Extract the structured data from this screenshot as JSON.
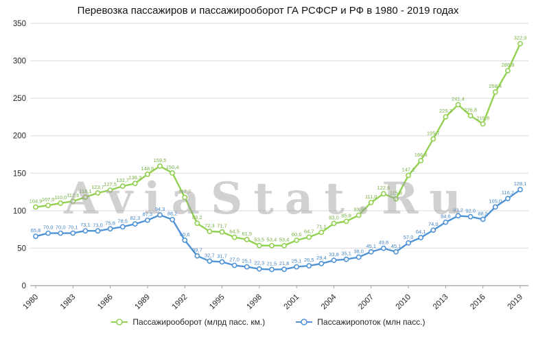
{
  "title": "Перевозка пассажиров и пассажирооборот ГА РСФСР и РФ в 1980 -  2019 годах",
  "watermark": "AviaStat.Ru",
  "chart_data": {
    "type": "line",
    "title": "Перевозка пассажиров и пассажирооборот ГА РСФСР и РФ в 1980 -  2019 годах",
    "years": [
      1980,
      1981,
      1982,
      1983,
      1984,
      1985,
      1986,
      1987,
      1988,
      1989,
      1990,
      1991,
      1992,
      1993,
      1994,
      1995,
      1996,
      1997,
      1998,
      1999,
      2000,
      2001,
      2002,
      2003,
      2004,
      2005,
      2006,
      2007,
      2008,
      2009,
      2010,
      2011,
      2012,
      2013,
      2014,
      2015,
      2016,
      2017,
      2018,
      2019
    ],
    "x_tick_labels": [
      "1980",
      "1983",
      "1986",
      "1989",
      "1992",
      "1995",
      "1998",
      "2001",
      "2004",
      "2007",
      "2010",
      "2013",
      "2016",
      "2019"
    ],
    "ylim": [
      0,
      350
    ],
    "y_ticks": [
      0,
      50,
      100,
      150,
      200,
      250,
      300,
      350
    ],
    "grid": "horizontal",
    "legend_position": "bottom",
    "decimal_separator": ",",
    "series": [
      {
        "id": "passenger-turnover",
        "name": "Пассажирооборот (млрд пасс. км.)",
        "color": "#92d050",
        "label_color": "#76b041",
        "values": [
          104.9,
          107.0,
          110.0,
          112.6,
          118.1,
          123.7,
          127.5,
          132.7,
          136.3,
          148.6,
          159.5,
          150.4,
          117.7,
          83.2,
          72.3,
          71.7,
          64.5,
          61.5,
          53.5,
          53.4,
          53.4,
          60.6,
          64.7,
          71.1,
          83.0,
          85.8,
          93.9,
          111.0,
          122.6,
          115.8,
          147.1,
          166.8,
          195.7,
          225.3,
          241.4,
          226.8,
          215.8,
          258.4,
          286.8,
          322.9
        ]
      },
      {
        "id": "passenger-traffic",
        "name": "Пассажиропоток (млн пасс.)",
        "color": "#4f93d6",
        "label_color": "#4585c4",
        "values": [
          65.8,
          70.0,
          70.0,
          70.1,
          73.1,
          73.0,
          75.8,
          78.5,
          82.3,
          87.3,
          94.3,
          88.2,
          60.6,
          39.7,
          32.7,
          31.7,
          27.0,
          25.1,
          22.3,
          21.5,
          21.8,
          25.1,
          26.5,
          29.4,
          33.8,
          35.1,
          38.0,
          45.1,
          49.8,
          45.1,
          57.0,
          64.1,
          74.0,
          84.6,
          93.2,
          92.0,
          88.5,
          105.0,
          116.2,
          128.1
        ]
      }
    ]
  }
}
